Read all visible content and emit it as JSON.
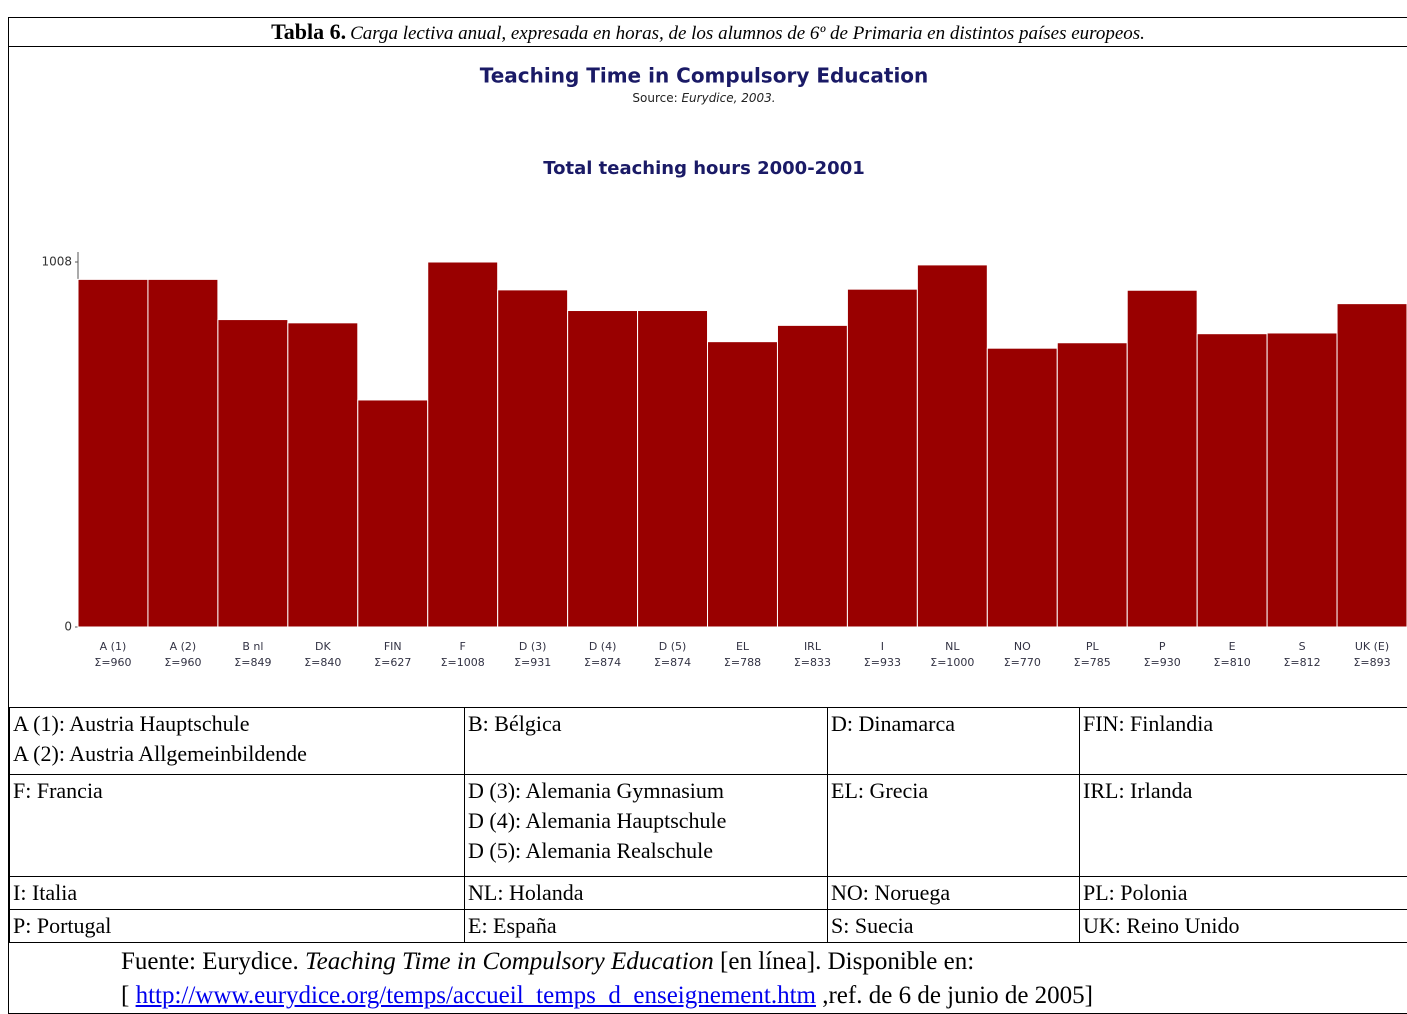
{
  "caption": {
    "label": "Tabla 6.",
    "text": "Carga lectiva anual, expresada en horas, de los alumnos de 6º de Primaria en distintos países europeos."
  },
  "chart_data": {
    "type": "bar",
    "title": "Teaching Time in Compulsory Education",
    "source": [
      "Source:",
      "Eurydice, 2003."
    ],
    "subtitle": "Total teaching hours 2000-2001",
    "categories": [
      "A (1)",
      "A (2)",
      "B nl",
      "DK",
      "FIN",
      "F",
      "D (3)",
      "D (4)",
      "D (5)",
      "EL",
      "IRL",
      "I",
      "NL",
      "NO",
      "PL",
      "P",
      "E",
      "S",
      "UK (E)"
    ],
    "values": [
      960,
      960,
      849,
      840,
      627,
      1008,
      931,
      874,
      874,
      788,
      833,
      933,
      1000,
      770,
      785,
      930,
      810,
      812,
      893
    ],
    "value_labels": [
      "Σ=960",
      "Σ=960",
      "Σ=849",
      "Σ=840",
      "Σ=627",
      "Σ=1008",
      "Σ=931",
      "Σ=874",
      "Σ=874",
      "Σ=788",
      "Σ=833",
      "Σ=933",
      "Σ=1000",
      "Σ=770",
      "Σ=785",
      "Σ=930",
      "Σ=810",
      "Σ=812",
      "Σ=893"
    ],
    "color": "#990000",
    "ylim": [
      0,
      1008
    ],
    "yticks": [
      0,
      1008
    ],
    "grid": false
  },
  "table": {
    "rows": [
      [
        [
          "A (1): Austria Hauptschule",
          "A (2): Austria Allgemeinbildende"
        ],
        [
          "B: Bélgica"
        ],
        [
          "D: Dinamarca"
        ],
        [
          "FIN: Finlandia"
        ]
      ],
      [
        [
          "F: Francia"
        ],
        [
          "D (3): Alemania Gymnasium",
          "D (4): Alemania Hauptschule",
          "D (5): Alemania Realschule"
        ],
        [
          "EL: Grecia"
        ],
        [
          "IRL: Irlanda"
        ]
      ],
      [
        [
          "I: Italia"
        ],
        [
          "NL: Holanda"
        ],
        [
          "NO: Noruega"
        ],
        [
          "PL: Polonia"
        ]
      ],
      [
        [
          "P: Portugal"
        ],
        [
          "E: España"
        ],
        [
          "S: Suecia"
        ],
        [
          "UK: Reino Unido"
        ]
      ]
    ]
  },
  "footer": {
    "prefix": "Fuente: Eurydice.",
    "title": "Teaching Time in Compulsory Education",
    "suffix": "[en línea]. Disponible en:",
    "open": "[",
    "link": "http://www.eurydice.org/temps/accueil_temps_d_enseignement.htm",
    "ref": ",ref. de  6 de junio de 2005]"
  }
}
